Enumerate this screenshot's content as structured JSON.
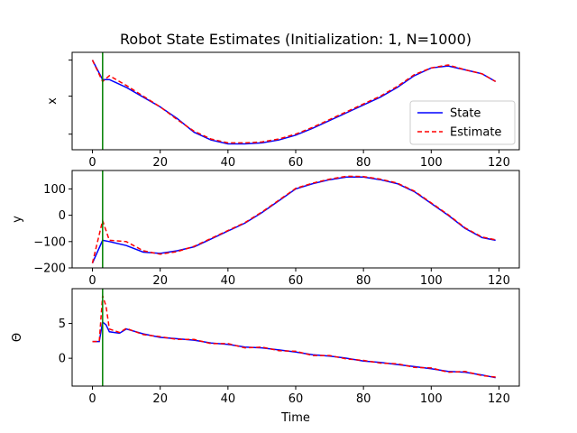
{
  "chart_data": {
    "type": "line",
    "title": "Robot State Estimates (Initialization: 1, N=1000)",
    "xlabel": "Time",
    "xlim": [
      -6,
      126
    ],
    "xticks": [
      0,
      20,
      40,
      60,
      80,
      100,
      120
    ],
    "init_marker_time": 3,
    "colors": {
      "state": "#0000ff",
      "estimate": "#ff0000",
      "marker": "#008000"
    },
    "legend": {
      "location": "lower-right of top panel",
      "entries": [
        {
          "label": "State",
          "style": "solid",
          "color": "#0000ff"
        },
        {
          "label": "Estimate",
          "style": "dashed",
          "color": "#ff0000"
        }
      ]
    },
    "subplots": [
      {
        "ylabel": "x",
        "ylim": [
          0,
          100
        ],
        "yticks": [],
        "tick_marks_only": true,
        "series": [
          {
            "name": "State",
            "x": [
              0,
              3,
              5,
              10,
              15,
              20,
              25,
              30,
              35,
              40,
              45,
              50,
              55,
              60,
              65,
              70,
              75,
              80,
              85,
              90,
              95,
              100,
              105,
              110,
              115,
              119
            ],
            "y": [
              92,
              72,
              72,
              64,
              54,
              44,
              32,
              18,
              10,
              6,
              6,
              7,
              10,
              15,
              22,
              30,
              38,
              46,
              54,
              64,
              76,
              84,
              86,
              82,
              78,
              70
            ]
          },
          {
            "name": "Estimate",
            "x": [
              0,
              3,
              5,
              10,
              15,
              20,
              25,
              30,
              35,
              40,
              45,
              50,
              55,
              60,
              65,
              70,
              75,
              80,
              85,
              90,
              95,
              100,
              105,
              110,
              115,
              119
            ],
            "y": [
              92,
              70,
              76,
              66,
              55,
              44,
              31,
              19,
              11,
              7,
              7,
              8,
              11,
              16,
              23,
              31,
              39,
              47,
              55,
              65,
              77,
              84,
              87,
              82,
              78,
              70
            ]
          }
        ]
      },
      {
        "ylabel": "y",
        "ylim": [
          -200,
          170
        ],
        "yticks": [
          -200,
          -100,
          0,
          100
        ],
        "series": [
          {
            "name": "State",
            "x": [
              0,
              3,
              5,
              10,
              15,
              20,
              25,
              30,
              35,
              40,
              45,
              50,
              55,
              60,
              65,
              70,
              75,
              80,
              85,
              90,
              95,
              100,
              105,
              110,
              115,
              119
            ],
            "y": [
              -182,
              -95,
              -100,
              -115,
              -140,
              -145,
              -135,
              -120,
              -90,
              -60,
              -30,
              10,
              55,
              100,
              120,
              135,
              145,
              145,
              135,
              120,
              90,
              45,
              0,
              -50,
              -85,
              -95
            ]
          },
          {
            "name": "Estimate",
            "x": [
              0,
              3,
              5,
              10,
              15,
              20,
              25,
              30,
              35,
              40,
              45,
              50,
              55,
              60,
              65,
              70,
              75,
              80,
              85,
              90,
              95,
              100,
              105,
              110,
              115,
              119
            ],
            "y": [
              -182,
              -20,
              -95,
              -100,
              -135,
              -148,
              -138,
              -118,
              -88,
              -58,
              -28,
              12,
              57,
              102,
              122,
              137,
              148,
              147,
              137,
              122,
              92,
              47,
              2,
              -48,
              -83,
              -93
            ]
          }
        ]
      },
      {
        "ylabel": "Θ",
        "ylim": [
          -4,
          10
        ],
        "yticks": [
          0,
          5
        ],
        "series": [
          {
            "name": "State",
            "x": [
              0,
              2,
              3,
              4,
              5,
              8,
              10,
              15,
              20,
              25,
              30,
              35,
              40,
              45,
              50,
              55,
              60,
              65,
              70,
              75,
              80,
              85,
              90,
              95,
              100,
              105,
              110,
              115,
              119
            ],
            "y": [
              2.4,
              2.4,
              5.2,
              4.8,
              3.8,
              3.6,
              4.2,
              3.5,
              3.0,
              2.8,
              2.6,
              2.2,
              2.0,
              1.6,
              1.5,
              1.2,
              0.9,
              0.5,
              0.3,
              0.0,
              -0.4,
              -0.6,
              -0.9,
              -1.2,
              -1.5,
              -1.9,
              -2.0,
              -2.4,
              -2.8
            ]
          },
          {
            "name": "Estimate",
            "x": [
              0,
              2,
              3,
              4,
              5,
              8,
              10,
              15,
              20,
              25,
              30,
              35,
              40,
              45,
              50,
              55,
              60,
              65,
              70,
              75,
              80,
              85,
              90,
              95,
              100,
              105,
              110,
              115,
              119
            ],
            "y": [
              2.4,
              2.4,
              9.0,
              7.5,
              4.2,
              3.7,
              4.3,
              3.4,
              3.1,
              2.7,
              2.7,
              2.1,
              2.1,
              1.5,
              1.6,
              1.1,
              1.0,
              0.4,
              0.4,
              -0.1,
              -0.3,
              -0.7,
              -0.8,
              -1.3,
              -1.4,
              -2.0,
              -1.9,
              -2.5,
              -2.7
            ]
          }
        ]
      }
    ]
  }
}
